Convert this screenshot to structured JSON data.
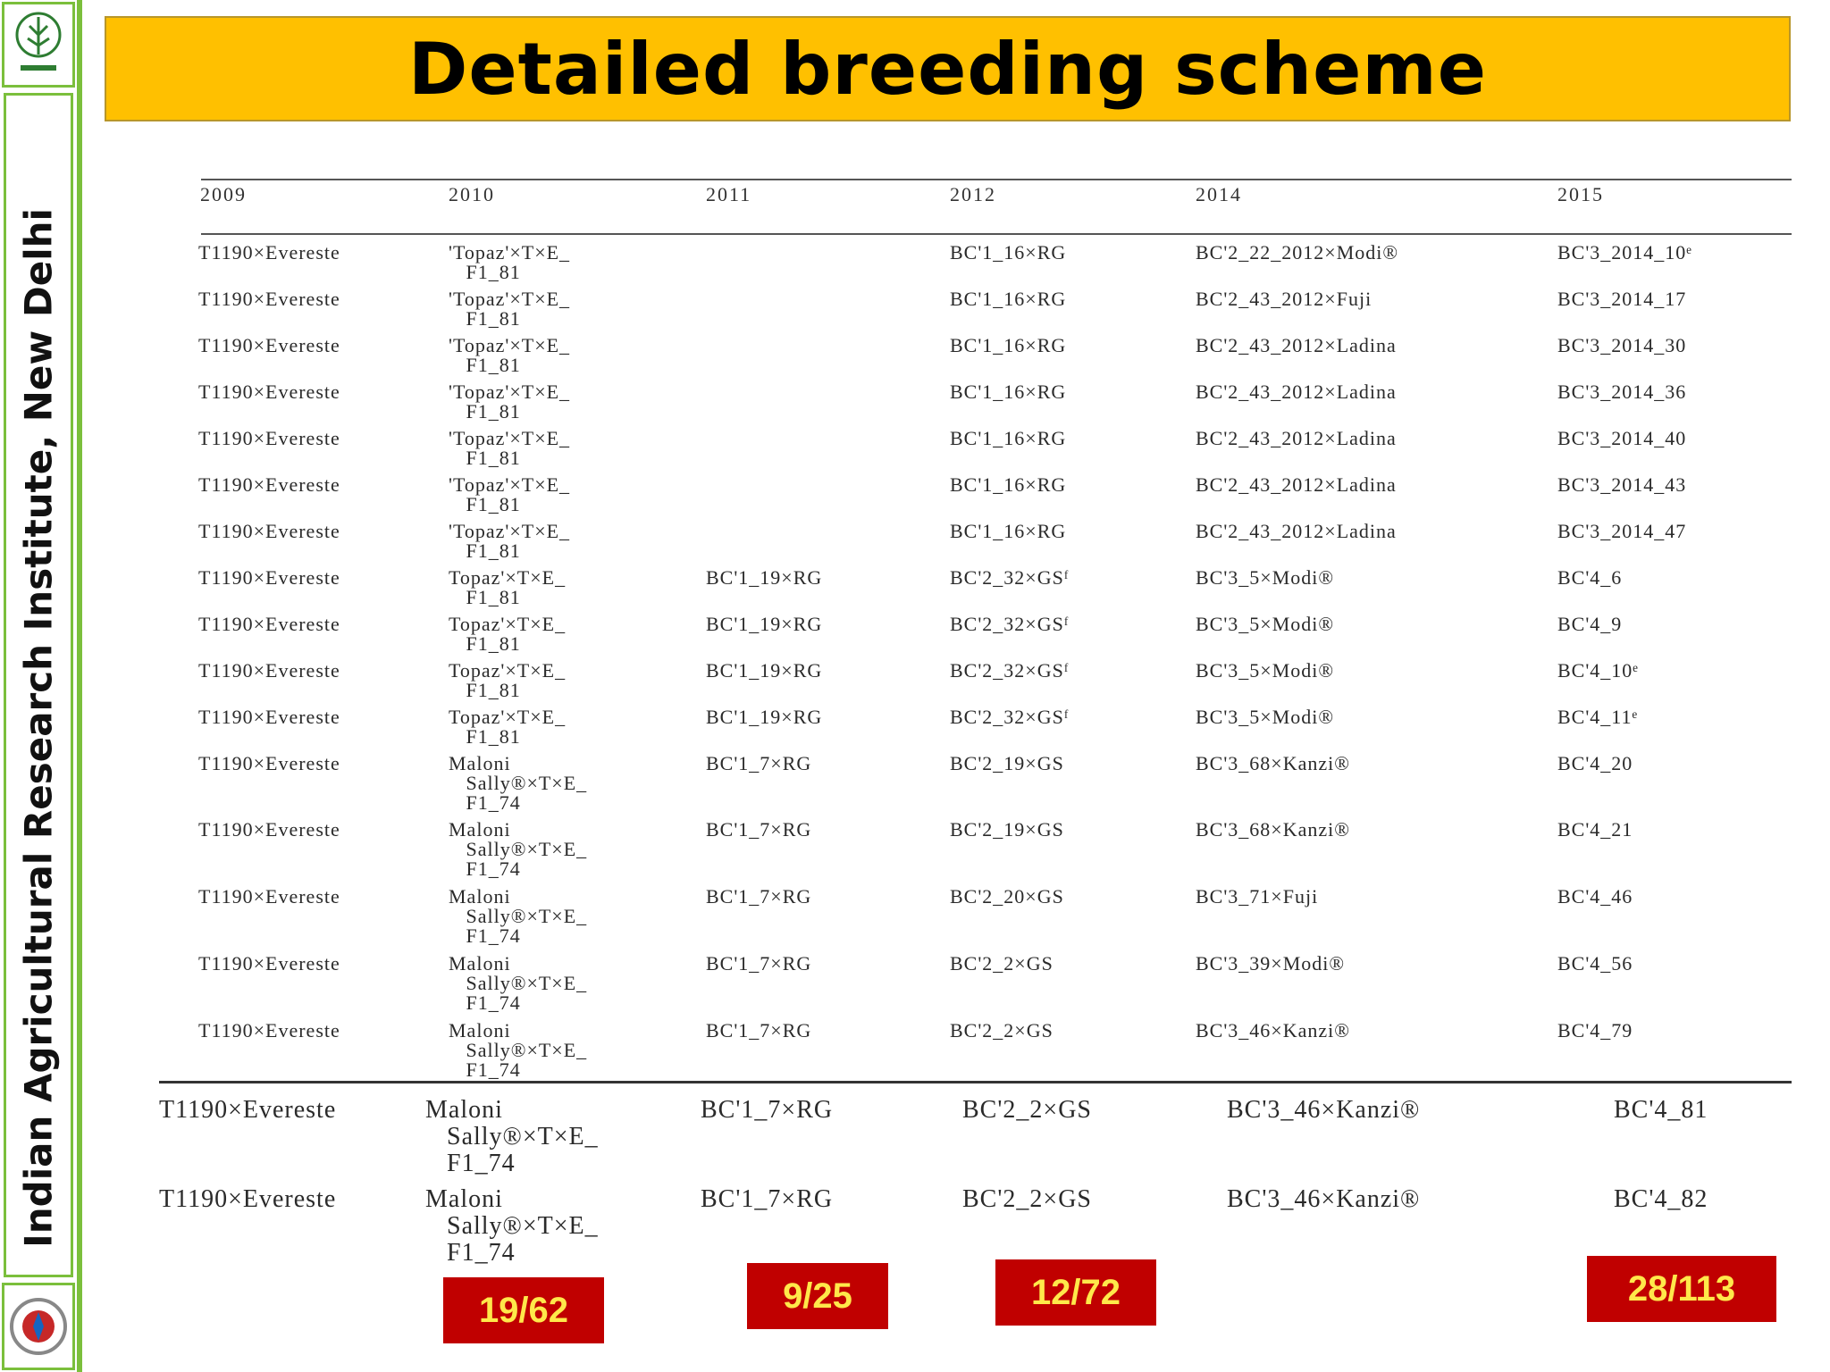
{
  "sidebar": {
    "institute": "Indian Agricultural Research Institute, New Delhi"
  },
  "title": "Detailed breeding scheme",
  "table": {
    "headers": [
      "2009",
      "2010",
      "2011",
      "2012",
      "2014",
      "2015"
    ],
    "rows": [
      [
        "T1190×Evereste",
        "'Topaz'×T×E_\n   F1_81",
        "",
        "BC'1_16×RG",
        "BC'2_22_2012×Modi®",
        "BC'3_2014_10ᵉ"
      ],
      [
        "T1190×Evereste",
        "'Topaz'×T×E_\n   F1_81",
        "",
        "BC'1_16×RG",
        "BC'2_43_2012×Fuji",
        "BC'3_2014_17"
      ],
      [
        "T1190×Evereste",
        "'Topaz'×T×E_\n   F1_81",
        "",
        "BC'1_16×RG",
        "BC'2_43_2012×Ladina",
        "BC'3_2014_30"
      ],
      [
        "T1190×Evereste",
        "'Topaz'×T×E_\n   F1_81",
        "",
        "BC'1_16×RG",
        "BC'2_43_2012×Ladina",
        "BC'3_2014_36"
      ],
      [
        "T1190×Evereste",
        "'Topaz'×T×E_\n   F1_81",
        "",
        "BC'1_16×RG",
        "BC'2_43_2012×Ladina",
        "BC'3_2014_40"
      ],
      [
        "T1190×Evereste",
        "'Topaz'×T×E_\n   F1_81",
        "",
        "BC'1_16×RG",
        "BC'2_43_2012×Ladina",
        "BC'3_2014_43"
      ],
      [
        "T1190×Evereste",
        "'Topaz'×T×E_\n   F1_81",
        "",
        "BC'1_16×RG",
        "BC'2_43_2012×Ladina",
        "BC'3_2014_47"
      ],
      [
        "T1190×Evereste",
        "Topaz'×T×E_\n   F1_81",
        "BC'1_19×RG",
        "BC'2_32×GSᶠ",
        "BC'3_5×Modi®",
        "BC'4_6"
      ],
      [
        "T1190×Evereste",
        "Topaz'×T×E_\n   F1_81",
        "BC'1_19×RG",
        "BC'2_32×GSᶠ",
        "BC'3_5×Modi®",
        "BC'4_9"
      ],
      [
        "T1190×Evereste",
        "Topaz'×T×E_\n   F1_81",
        "BC'1_19×RG",
        "BC'2_32×GSᶠ",
        "BC'3_5×Modi®",
        "BC'4_10ᵉ"
      ],
      [
        "T1190×Evereste",
        "Topaz'×T×E_\n   F1_81",
        "BC'1_19×RG",
        "BC'2_32×GSᶠ",
        "BC'3_5×Modi®",
        "BC'4_11ᵉ"
      ],
      [
        "T1190×Evereste",
        "Maloni\n   Sally®×T×E_\n   F1_74",
        "BC'1_7×RG",
        "BC'2_19×GS",
        "BC'3_68×Kanzi®",
        "BC'4_20"
      ],
      [
        "T1190×Evereste",
        "Maloni\n   Sally®×T×E_\n   F1_74",
        "BC'1_7×RG",
        "BC'2_19×GS",
        "BC'3_68×Kanzi®",
        "BC'4_21"
      ],
      [
        "T1190×Evereste",
        "Maloni\n   Sally®×T×E_\n   F1_74",
        "BC'1_7×RG",
        "BC'2_20×GS",
        "BC'3_71×Fuji",
        "BC'4_46"
      ],
      [
        "T1190×Evereste",
        "Maloni\n   Sally®×T×E_\n   F1_74",
        "BC'1_7×RG",
        "BC'2_2×GS",
        "BC'3_39×Modi®",
        "BC'4_56"
      ],
      [
        "T1190×Evereste",
        "Maloni\n   Sally®×T×E_\n   F1_74",
        "BC'1_7×RG",
        "BC'2_2×GS",
        "BC'3_46×Kanzi®",
        "BC'4_79"
      ]
    ],
    "extra_rows": [
      [
        "T1190×Evereste",
        "Maloni\n   Sally®×T×E_\n   F1_74",
        "BC'1_7×RG",
        "BC'2_2×GS",
        "BC'3_46×Kanzi®",
        "BC'4_81"
      ],
      [
        "T1190×Evereste",
        "Maloni\n   Sally®×T×E_\n   F1_74",
        "BC'1_7×RG",
        "BC'2_2×GS",
        "BC'3_46×Kanzi®",
        "BC'4_82"
      ]
    ]
  },
  "badges": [
    "19/62",
    "9/25",
    "12/72",
    "28/113"
  ],
  "colors": {
    "title_bg": "#ffc000",
    "badge_bg": "#c00000",
    "badge_text": "#ffe84a",
    "sidebar_border": "#7bbf3c"
  }
}
